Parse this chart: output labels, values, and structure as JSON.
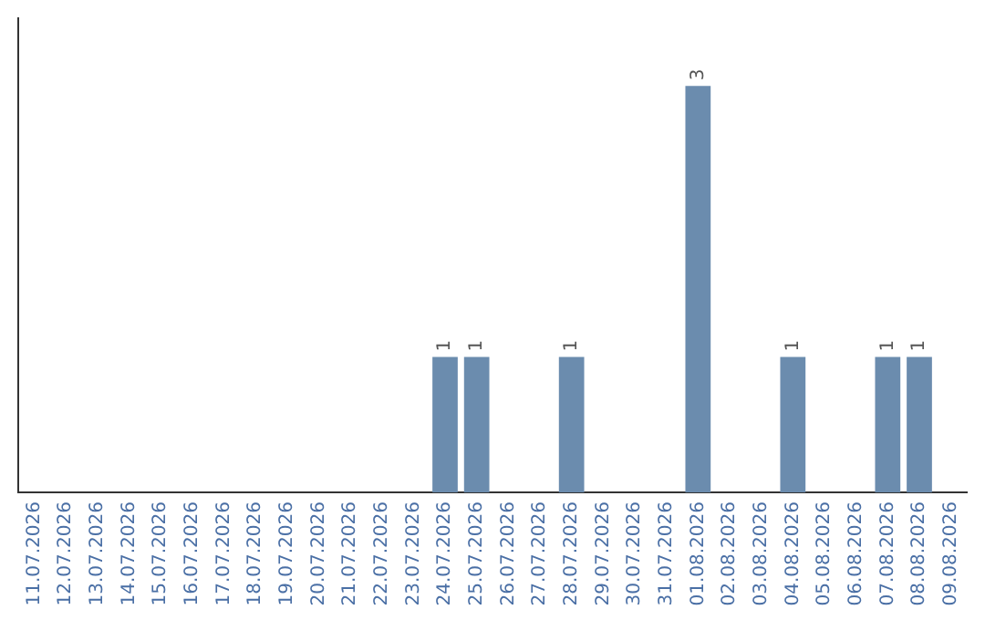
{
  "chart_data": {
    "type": "bar",
    "categories": [
      "11.07.2026",
      "12.07.2026",
      "13.07.2026",
      "14.07.2026",
      "15.07.2026",
      "16.07.2026",
      "17.07.2026",
      "18.07.2026",
      "19.07.2026",
      "20.07.2026",
      "21.07.2026",
      "22.07.2026",
      "23.07.2026",
      "24.07.2026",
      "25.07.2026",
      "26.07.2026",
      "27.07.2026",
      "28.07.2026",
      "29.07.2026",
      "30.07.2026",
      "31.07.2026",
      "01.08.2026",
      "02.08.2026",
      "03.08.2026",
      "04.08.2026",
      "05.08.2026",
      "06.08.2026",
      "07.08.2026",
      "08.08.2026",
      "09.08.2026"
    ],
    "values": [
      null,
      null,
      null,
      null,
      null,
      null,
      null,
      null,
      null,
      null,
      null,
      null,
      null,
      1,
      1,
      null,
      null,
      1,
      null,
      null,
      null,
      3,
      null,
      null,
      1,
      null,
      null,
      1,
      1,
      null
    ],
    "value_labels": [
      null,
      null,
      null,
      null,
      null,
      null,
      null,
      null,
      null,
      null,
      null,
      null,
      null,
      "1",
      "1",
      null,
      null,
      "1",
      null,
      null,
      null,
      "3",
      null,
      null,
      "1",
      null,
      null,
      "1",
      "1",
      null
    ],
    "color": "#6b8cae",
    "grid": false,
    "legend": false
  }
}
